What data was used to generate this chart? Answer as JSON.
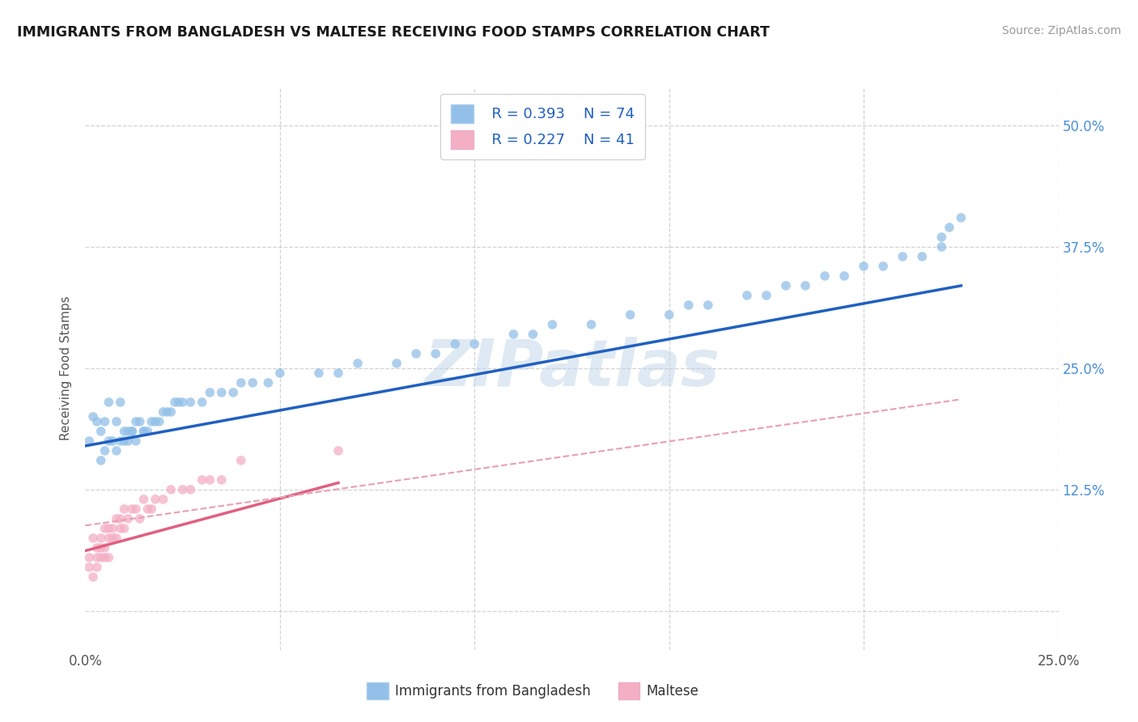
{
  "title": "IMMIGRANTS FROM BANGLADESH VS MALTESE RECEIVING FOOD STAMPS CORRELATION CHART",
  "source": "Source: ZipAtlas.com",
  "ylabel": "Receiving Food Stamps",
  "xlim": [
    0.0,
    0.25
  ],
  "ylim": [
    -0.04,
    0.54
  ],
  "xticks": [
    0.0,
    0.05,
    0.1,
    0.15,
    0.2,
    0.25
  ],
  "yticks": [
    0.0,
    0.125,
    0.25,
    0.375,
    0.5
  ],
  "yticklabels_right": [
    "",
    "12.5%",
    "25.0%",
    "37.5%",
    "50.0%"
  ],
  "bg_color": "#ffffff",
  "grid_color": "#c8c8c8",
  "legend_r1": "R = 0.393",
  "legend_n1": "N = 74",
  "legend_r2": "R = 0.227",
  "legend_n2": "N = 41",
  "series1_color": "#92c0e8",
  "series2_color": "#f4afc4",
  "line1_color": "#2060c0",
  "line2_color": "#e06080",
  "line2_dash_color": "#e8a0b0",
  "scatter1_x": [
    0.001,
    0.002,
    0.003,
    0.004,
    0.004,
    0.005,
    0.005,
    0.006,
    0.006,
    0.007,
    0.008,
    0.008,
    0.009,
    0.009,
    0.01,
    0.01,
    0.011,
    0.011,
    0.012,
    0.012,
    0.013,
    0.013,
    0.014,
    0.015,
    0.015,
    0.016,
    0.017,
    0.018,
    0.019,
    0.02,
    0.021,
    0.022,
    0.023,
    0.024,
    0.025,
    0.027,
    0.03,
    0.032,
    0.035,
    0.038,
    0.04,
    0.043,
    0.047,
    0.05,
    0.06,
    0.065,
    0.07,
    0.08,
    0.085,
    0.09,
    0.095,
    0.1,
    0.11,
    0.115,
    0.12,
    0.13,
    0.14,
    0.15,
    0.155,
    0.16,
    0.17,
    0.175,
    0.18,
    0.185,
    0.19,
    0.195,
    0.2,
    0.205,
    0.21,
    0.215,
    0.22,
    0.22,
    0.222,
    0.225
  ],
  "scatter1_y": [
    0.175,
    0.2,
    0.195,
    0.155,
    0.185,
    0.165,
    0.195,
    0.175,
    0.215,
    0.175,
    0.165,
    0.195,
    0.175,
    0.215,
    0.185,
    0.175,
    0.185,
    0.175,
    0.185,
    0.185,
    0.195,
    0.175,
    0.195,
    0.185,
    0.185,
    0.185,
    0.195,
    0.195,
    0.195,
    0.205,
    0.205,
    0.205,
    0.215,
    0.215,
    0.215,
    0.215,
    0.215,
    0.225,
    0.225,
    0.225,
    0.235,
    0.235,
    0.235,
    0.245,
    0.245,
    0.245,
    0.255,
    0.255,
    0.265,
    0.265,
    0.275,
    0.275,
    0.285,
    0.285,
    0.295,
    0.295,
    0.305,
    0.305,
    0.315,
    0.315,
    0.325,
    0.325,
    0.335,
    0.335,
    0.345,
    0.345,
    0.355,
    0.355,
    0.365,
    0.365,
    0.375,
    0.385,
    0.395,
    0.405
  ],
  "scatter2_x": [
    0.001,
    0.001,
    0.002,
    0.002,
    0.003,
    0.003,
    0.003,
    0.004,
    0.004,
    0.004,
    0.005,
    0.005,
    0.005,
    0.006,
    0.006,
    0.006,
    0.007,
    0.007,
    0.008,
    0.008,
    0.009,
    0.009,
    0.01,
    0.01,
    0.011,
    0.012,
    0.013,
    0.014,
    0.015,
    0.016,
    0.017,
    0.018,
    0.02,
    0.022,
    0.025,
    0.027,
    0.03,
    0.032,
    0.035,
    0.04,
    0.065
  ],
  "scatter2_y": [
    0.055,
    0.045,
    0.075,
    0.035,
    0.065,
    0.055,
    0.045,
    0.075,
    0.065,
    0.055,
    0.085,
    0.065,
    0.055,
    0.085,
    0.075,
    0.055,
    0.085,
    0.075,
    0.095,
    0.075,
    0.095,
    0.085,
    0.105,
    0.085,
    0.095,
    0.105,
    0.105,
    0.095,
    0.115,
    0.105,
    0.105,
    0.115,
    0.115,
    0.125,
    0.125,
    0.125,
    0.135,
    0.135,
    0.135,
    0.155,
    0.165
  ],
  "line1_x0": 0.0,
  "line1_y0": 0.17,
  "line1_x1": 0.225,
  "line1_y1": 0.335,
  "line2_solid_x0": 0.0,
  "line2_solid_y0": 0.062,
  "line2_solid_x1": 0.065,
  "line2_solid_y1": 0.132,
  "line2_dash_x0": 0.0,
  "line2_dash_y0": 0.088,
  "line2_dash_x1": 0.225,
  "line2_dash_y1": 0.218
}
